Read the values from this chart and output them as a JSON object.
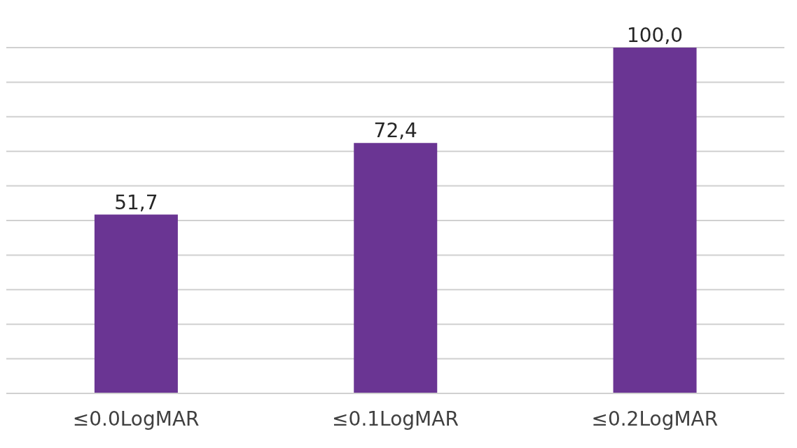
{
  "chart_data": {
    "type": "bar",
    "categories": [
      "≤0.0LogMAR",
      "≤0.1LogMAR",
      "≤0.2LogMAR"
    ],
    "values": [
      51.7,
      72.4,
      100.0
    ],
    "value_labels": [
      "51,7",
      "72,4",
      "100,0"
    ],
    "color": "#6a3593",
    "ylim": [
      0,
      100
    ],
    "grid": "y",
    "tick_labels": "x"
  }
}
